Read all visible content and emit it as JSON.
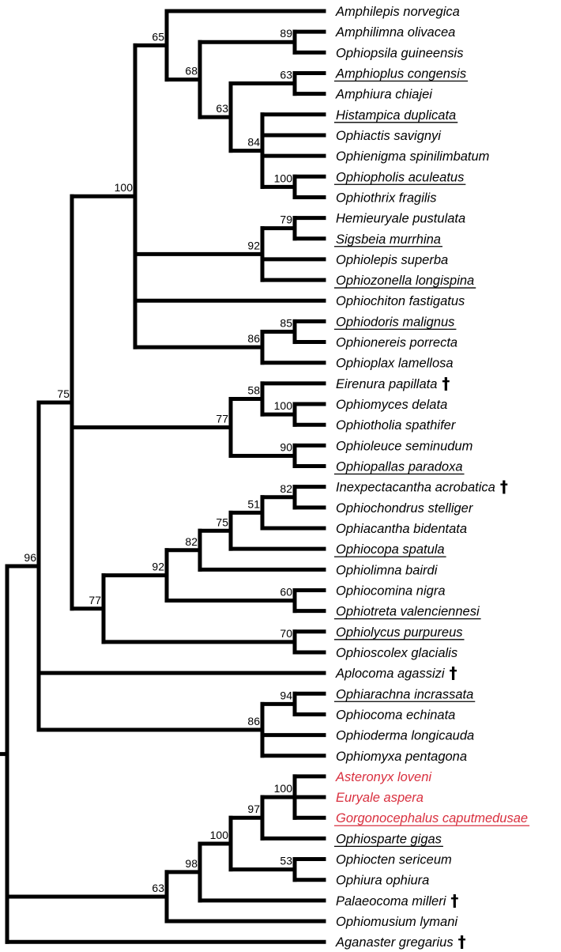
{
  "tree": {
    "id": "root",
    "support": "",
    "children": [
      {
        "id": "n96",
        "support": "96",
        "children": [
          {
            "id": "n75",
            "support": "75",
            "children": [
              {
                "id": "n100a",
                "support": "100",
                "children": [
                  {
                    "id": "n65",
                    "support": "65",
                    "children": [
                      {
                        "name": "Amphilepis norvegica"
                      },
                      {
                        "id": "n68",
                        "support": "68",
                        "children": [
                          {
                            "id": "n89",
                            "support": "89",
                            "children": [
                              {
                                "name": "Amphilimna olivacea"
                              },
                              {
                                "name": "Ophiopsila guineensis"
                              }
                            ]
                          },
                          {
                            "id": "n63a",
                            "support": "63",
                            "children": [
                              {
                                "id": "n63b",
                                "support": "63",
                                "children": [
                                  {
                                    "name": "Amphioplus congensis",
                                    "underline": true
                                  },
                                  {
                                    "name": "Amphiura chiajei"
                                  }
                                ]
                              },
                              {
                                "id": "n84",
                                "support": "84",
                                "children": [
                                  {
                                    "name": "Histampica duplicata",
                                    "underline": true
                                  },
                                  {
                                    "name": "Ophiactis savignyi"
                                  },
                                  {
                                    "name": "Ophienigma spinilimbatum"
                                  },
                                  {
                                    "id": "n100b",
                                    "support": "100",
                                    "children": [
                                      {
                                        "name": "Ophiopholis aculeatus",
                                        "underline": true
                                      },
                                      {
                                        "name": "Ophiothrix fragilis"
                                      }
                                    ]
                                  }
                                ]
                              }
                            ]
                          }
                        ]
                      }
                    ]
                  },
                  {
                    "id": "n92a",
                    "support": "92",
                    "children": [
                      {
                        "id": "n79",
                        "support": "79",
                        "children": [
                          {
                            "name": "Hemieuryale pustulata"
                          },
                          {
                            "name": "Sigsbeia murrhina",
                            "underline": true
                          }
                        ]
                      },
                      {
                        "name": "Ophiolepis superba"
                      },
                      {
                        "name": "Ophiozonella longispina",
                        "underline": true
                      }
                    ]
                  },
                  {
                    "name": "Ophiochiton fastigatus"
                  },
                  {
                    "id": "n86a",
                    "support": "86",
                    "children": [
                      {
                        "id": "n85",
                        "support": "85",
                        "children": [
                          {
                            "name": "Ophiodoris malignus",
                            "underline": true
                          },
                          {
                            "name": "Ophionereis porrecta"
                          }
                        ]
                      },
                      {
                        "name": "Ophioplax lamellosa"
                      }
                    ]
                  }
                ]
              },
              {
                "id": "n77a",
                "support": "77",
                "children": [
                  {
                    "id": "n58",
                    "support": "58",
                    "children": [
                      {
                        "name": "Eirenura papillata",
                        "fossil": true
                      },
                      {
                        "id": "n100c",
                        "support": "100",
                        "children": [
                          {
                            "name": "Ophiomyces delata"
                          },
                          {
                            "name": "Ophiotholia spathifer"
                          }
                        ]
                      }
                    ]
                  },
                  {
                    "id": "n90",
                    "support": "90",
                    "children": [
                      {
                        "name": "Ophioleuce seminudum"
                      },
                      {
                        "name": "Ophiopallas paradoxa",
                        "underline": true
                      }
                    ]
                  }
                ]
              },
              {
                "id": "n77b",
                "support": "77",
                "children": [
                  {
                    "id": "n92b",
                    "support": "92",
                    "children": [
                      {
                        "id": "n82b",
                        "support": "82",
                        "children": [
                          {
                            "id": "n75b",
                            "support": "75",
                            "children": [
                              {
                                "id": "n51",
                                "support": "51",
                                "children": [
                                  {
                                    "id": "n82a",
                                    "support": "82",
                                    "children": [
                                      {
                                        "name": "Inexpectacantha acrobatica",
                                        "fossil": true
                                      },
                                      {
                                        "name": "Ophiochondrus stelliger"
                                      }
                                    ]
                                  },
                                  {
                                    "name": "Ophiacantha bidentata"
                                  }
                                ]
                              },
                              {
                                "name": "Ophiocopa spatula",
                                "underline": true
                              }
                            ]
                          },
                          {
                            "name": "Ophiolimna bairdi"
                          }
                        ]
                      },
                      {
                        "id": "n60",
                        "support": "60",
                        "children": [
                          {
                            "name": "Ophiocomina nigra"
                          },
                          {
                            "name": "Ophiotreta valenciennesi",
                            "underline": true
                          }
                        ]
                      }
                    ]
                  },
                  {
                    "id": "n70",
                    "support": "70",
                    "children": [
                      {
                        "name": "Ophiolycus purpureus",
                        "underline": true
                      },
                      {
                        "name": "Ophioscolex glacialis"
                      }
                    ]
                  }
                ]
              }
            ]
          },
          {
            "name": "Aplocoma agassizi",
            "fossil": true
          },
          {
            "id": "n86b",
            "support": "86",
            "children": [
              {
                "id": "n94",
                "support": "94",
                "children": [
                  {
                    "name": "Ophiarachna incrassata",
                    "underline": true
                  },
                  {
                    "name": "Ophiocoma echinata"
                  }
                ]
              },
              {
                "name": "Ophioderma longicauda"
              },
              {
                "name": "Ophiomyxa pentagona"
              }
            ]
          }
        ]
      },
      {
        "id": "n63c",
        "support": "63",
        "children": [
          {
            "id": "n98",
            "support": "98",
            "children": [
              {
                "id": "n100d",
                "support": "100",
                "children": [
                  {
                    "id": "n97",
                    "support": "97",
                    "children": [
                      {
                        "id": "n100e",
                        "support": "100",
                        "children": [
                          {
                            "name": "Asteronyx loveni",
                            "color": "#d9303f"
                          },
                          {
                            "name": "Euryale aspera",
                            "color": "#d9303f"
                          },
                          {
                            "name": "Gorgonocephalus caputmedusae",
                            "color": "#d9303f",
                            "underline": true
                          }
                        ]
                      },
                      {
                        "name": "Ophiosparte gigas",
                        "underline": true
                      }
                    ]
                  },
                  {
                    "id": "n53",
                    "support": "53",
                    "children": [
                      {
                        "name": "Ophiocten sericeum"
                      },
                      {
                        "name": "Ophiura ophiura"
                      }
                    ]
                  }
                ]
              },
              {
                "name": "Palaeocoma milleri",
                "fossil": true
              }
            ]
          },
          {
            "name": "Ophiomusium lymani"
          }
        ]
      },
      {
        "name": "Aganaster gregarius",
        "fossil": true
      }
    ]
  },
  "fossil_marker": "†"
}
